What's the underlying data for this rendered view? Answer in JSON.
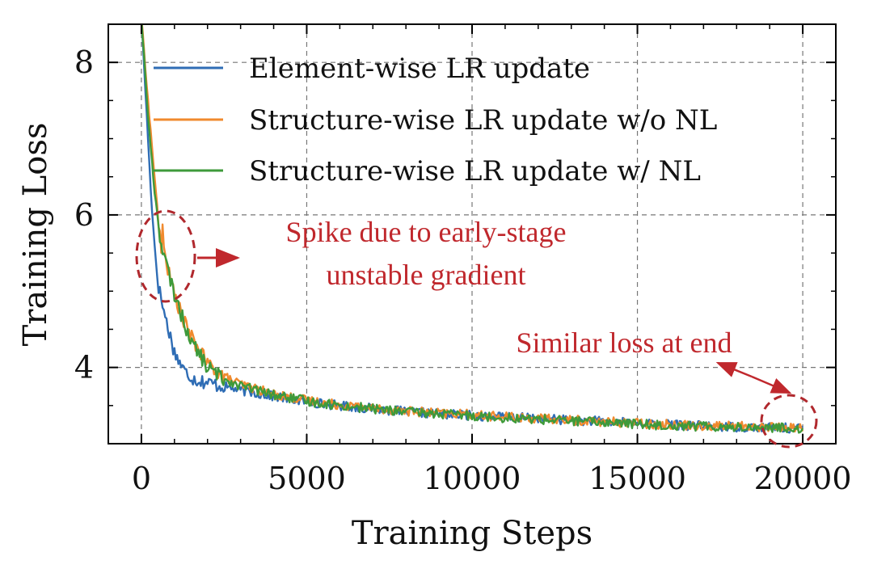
{
  "chart_data": {
    "type": "line",
    "xlabel": "Training Steps",
    "ylabel": "Training Loss",
    "xlim": [
      -1000,
      21000
    ],
    "ylim": [
      3.0,
      8.5
    ],
    "xticks": [
      0,
      5000,
      10000,
      15000,
      20000
    ],
    "yticks": [
      4,
      6,
      8
    ],
    "grid": true,
    "legend_position": "top-left",
    "series": [
      {
        "name": "Element-wise LR update",
        "color": "#2f6db5",
        "points": [
          [
            0,
            8.6
          ],
          [
            100,
            7.8
          ],
          [
            200,
            7.0
          ],
          [
            300,
            6.2
          ],
          [
            400,
            5.6
          ],
          [
            500,
            5.1
          ],
          [
            700,
            4.7
          ],
          [
            1000,
            4.2
          ],
          [
            1300,
            3.95
          ],
          [
            1600,
            3.85
          ],
          [
            2000,
            3.8
          ],
          [
            2500,
            3.75
          ],
          [
            3000,
            3.7
          ],
          [
            4000,
            3.62
          ],
          [
            5000,
            3.55
          ],
          [
            6000,
            3.5
          ],
          [
            7000,
            3.46
          ],
          [
            8000,
            3.42
          ],
          [
            9000,
            3.39
          ],
          [
            10000,
            3.37
          ],
          [
            11000,
            3.35
          ],
          [
            12000,
            3.33
          ],
          [
            13000,
            3.31
          ],
          [
            14000,
            3.29
          ],
          [
            15000,
            3.27
          ],
          [
            16000,
            3.25
          ],
          [
            17000,
            3.23
          ],
          [
            18000,
            3.22
          ],
          [
            19000,
            3.21
          ],
          [
            20000,
            3.2
          ]
        ]
      },
      {
        "name": "Structure-wise LR update w/o NL",
        "color": "#f08a2e",
        "points": [
          [
            0,
            8.6
          ],
          [
            200,
            7.5
          ],
          [
            400,
            6.5
          ],
          [
            600,
            5.5
          ],
          [
            650,
            5.9
          ],
          [
            700,
            5.5
          ],
          [
            900,
            5.1
          ],
          [
            1200,
            4.7
          ],
          [
            1500,
            4.4
          ],
          [
            2000,
            4.05
          ],
          [
            2500,
            3.88
          ],
          [
            3000,
            3.78
          ],
          [
            4000,
            3.65
          ],
          [
            5000,
            3.57
          ],
          [
            6000,
            3.51
          ],
          [
            7000,
            3.47
          ],
          [
            8000,
            3.43
          ],
          [
            9000,
            3.4
          ],
          [
            10000,
            3.38
          ],
          [
            11000,
            3.35
          ],
          [
            12000,
            3.33
          ],
          [
            13000,
            3.31
          ],
          [
            14000,
            3.29
          ],
          [
            15000,
            3.27
          ],
          [
            16000,
            3.25
          ],
          [
            17000,
            3.24
          ],
          [
            18000,
            3.23
          ],
          [
            19000,
            3.22
          ],
          [
            20000,
            3.21
          ]
        ]
      },
      {
        "name": "Structure-wise LR update w/ NL",
        "color": "#3e9a3a",
        "points": [
          [
            0,
            8.6
          ],
          [
            200,
            7.3
          ],
          [
            400,
            6.3
          ],
          [
            600,
            5.6
          ],
          [
            900,
            5.1
          ],
          [
            1200,
            4.7
          ],
          [
            1500,
            4.35
          ],
          [
            2000,
            4.0
          ],
          [
            2500,
            3.85
          ],
          [
            3000,
            3.76
          ],
          [
            4000,
            3.64
          ],
          [
            5000,
            3.56
          ],
          [
            6000,
            3.5
          ],
          [
            7000,
            3.46
          ],
          [
            8000,
            3.42
          ],
          [
            9000,
            3.39
          ],
          [
            10000,
            3.37
          ],
          [
            11000,
            3.34
          ],
          [
            12000,
            3.32
          ],
          [
            13000,
            3.3
          ],
          [
            14000,
            3.28
          ],
          [
            15000,
            3.26
          ],
          [
            16000,
            3.24
          ],
          [
            17000,
            3.23
          ],
          [
            18000,
            3.22
          ],
          [
            19000,
            3.21
          ],
          [
            20000,
            3.2
          ]
        ]
      }
    ],
    "annotations": [
      {
        "lines": [
          "Spike due to early-stage",
          "unstable gradient"
        ],
        "color": "#c0282d",
        "target": [
          650,
          5.5
        ]
      },
      {
        "lines": [
          "Similar loss at end"
        ],
        "color": "#c0282d",
        "target": [
          20000,
          3.22
        ]
      }
    ]
  }
}
